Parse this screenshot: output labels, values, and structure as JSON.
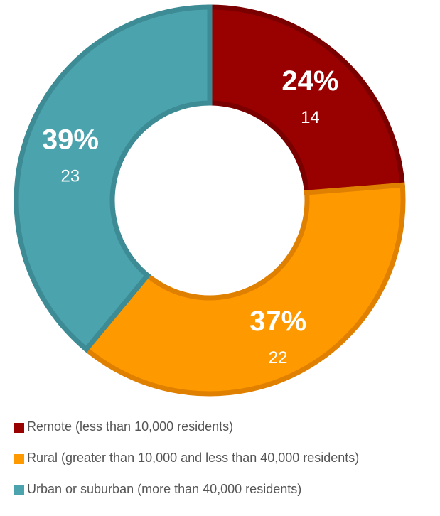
{
  "chart_data": {
    "type": "pie",
    "variant": "donut",
    "legend_position": "bottom",
    "series": [
      {
        "label": "Remote (less than 10,000 residents)",
        "value": 14,
        "percent": "24%",
        "color": "#990000",
        "border": "#7a0000"
      },
      {
        "label": "Rural (greater than 10,000 and less than 40,000 residents)",
        "value": 22,
        "percent": "37%",
        "color": "#ff9900",
        "border": "#e08000"
      },
      {
        "label": "Urban or suburban (more than 40,000 residents)",
        "value": 23,
        "percent": "39%",
        "color": "#4ba3ad",
        "border": "#3c8b95"
      }
    ]
  }
}
